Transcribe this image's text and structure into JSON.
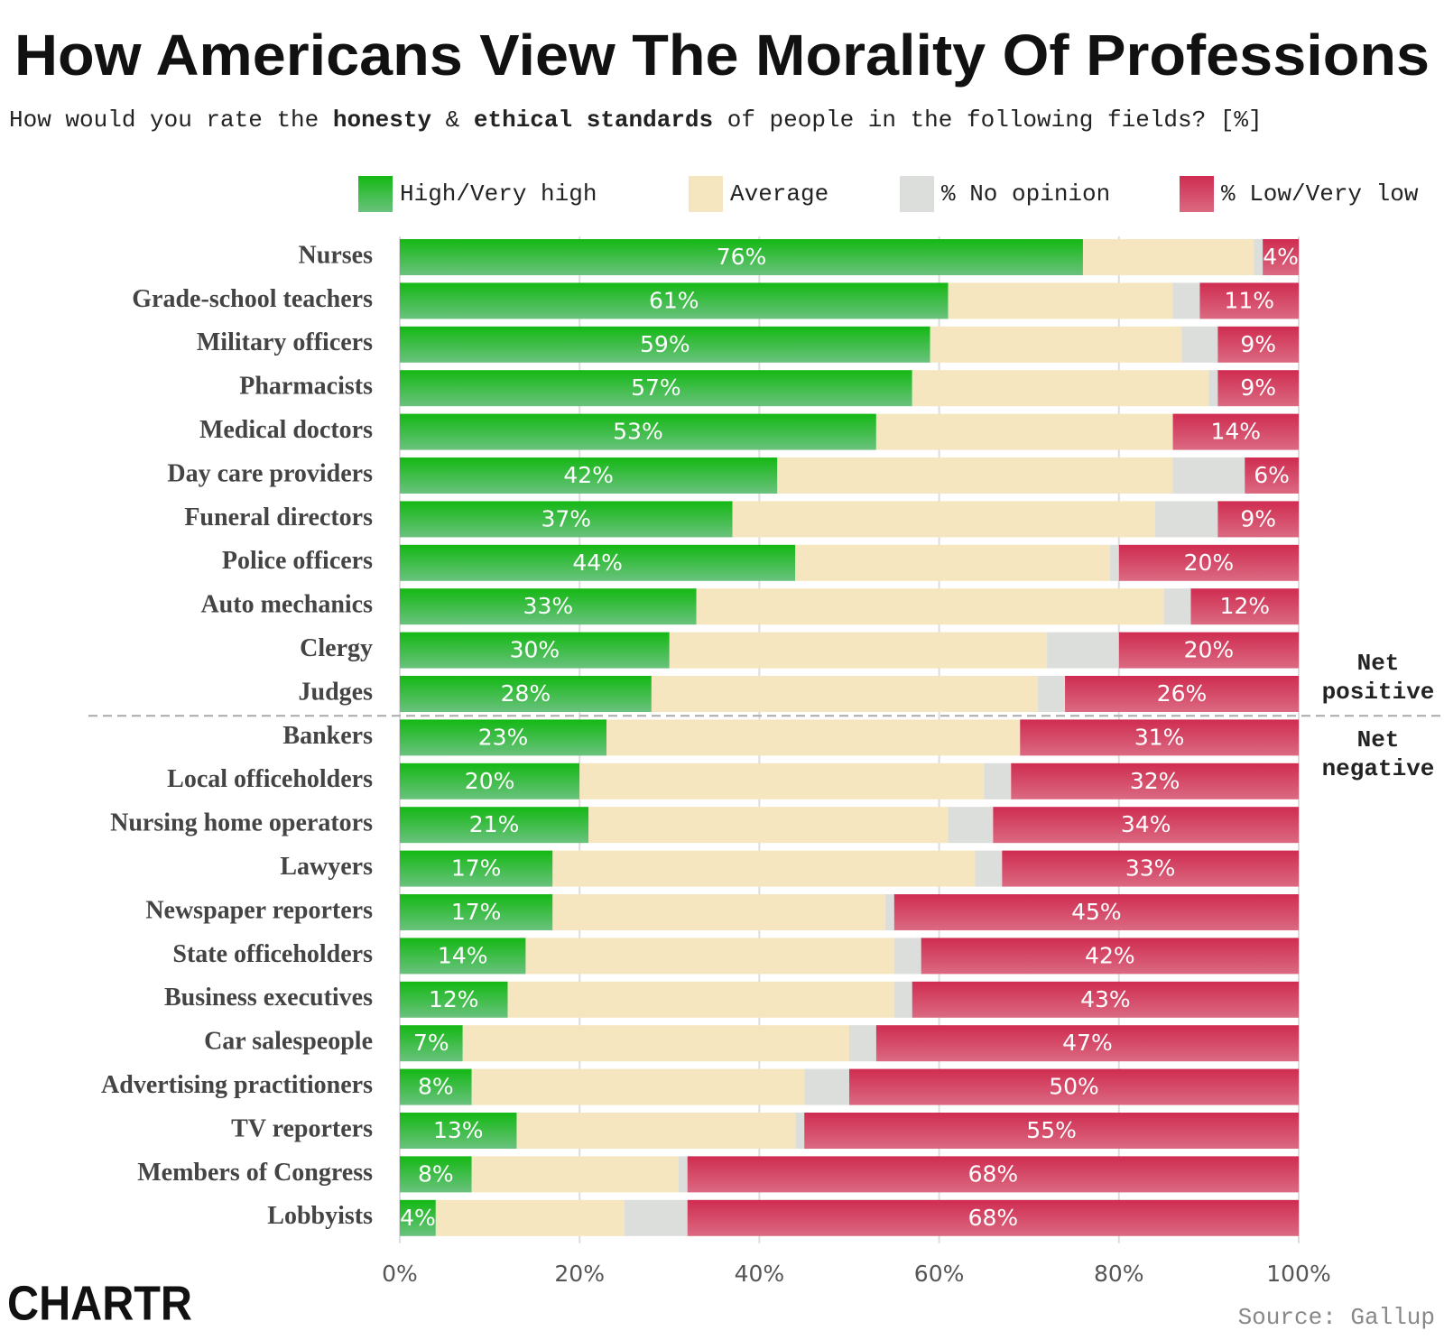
{
  "chart_data": {
    "type": "stacked_bar_horizontal",
    "title": "How Americans View The Morality Of Professions",
    "subtitle": [
      {
        "text": "How would you rate the ",
        "bold": false
      },
      {
        "text": "honesty",
        "bold": true
      },
      {
        "text": " & ",
        "bold": false
      },
      {
        "text": "ethical standards",
        "bold": true
      },
      {
        "text": " of people in the following fields? [%]",
        "bold": false
      }
    ],
    "categories": [
      "Nurses",
      "Grade-school teachers",
      "Military officers",
      "Pharmacists",
      "Medical doctors",
      "Day care providers",
      "Funeral directors",
      "Police officers",
      "Auto mechanics",
      "Clergy",
      "Judges",
      "Bankers",
      "Local officeholders",
      "Nursing home operators",
      "Lawyers",
      "Newspaper reporters",
      "State officeholders",
      "Business executives",
      "Car salespeople",
      "Advertising practitioners",
      "TV reporters",
      "Members of Congress",
      "Lobbyists"
    ],
    "series": [
      {
        "name": "High/Very high",
        "color": "#19b719",
        "values": [
          76,
          61,
          59,
          57,
          53,
          42,
          37,
          44,
          33,
          30,
          28,
          23,
          20,
          21,
          17,
          17,
          14,
          12,
          7,
          8,
          13,
          8,
          4
        ],
        "value_labels": [
          "76%",
          "61%",
          "59%",
          "57%",
          "53%",
          "42%",
          "37%",
          "44%",
          "33%",
          "30%",
          "28%",
          "23%",
          "20%",
          "21%",
          "17%",
          "17%",
          "14%",
          "12%",
          "7%",
          "8%",
          "13%",
          "8%",
          "4%"
        ]
      },
      {
        "name": "Average",
        "color": "#f5e6bf",
        "values": [
          19,
          25,
          28,
          33,
          33,
          44,
          47,
          35,
          52,
          42,
          43,
          46,
          45,
          40,
          47,
          37,
          41,
          43,
          43,
          37,
          31,
          23,
          21
        ]
      },
      {
        "name": "% No opinion",
        "color": "#dcdedb",
        "values": [
          1,
          3,
          4,
          1,
          0,
          8,
          7,
          1,
          3,
          8,
          3,
          0,
          3,
          5,
          3,
          1,
          3,
          2,
          3,
          5,
          1,
          1,
          7
        ]
      },
      {
        "name": "% Low/Very low",
        "color": "#d0385a",
        "values": [
          4,
          11,
          9,
          9,
          14,
          6,
          9,
          20,
          12,
          20,
          26,
          31,
          32,
          34,
          33,
          45,
          42,
          43,
          47,
          50,
          55,
          68,
          68
        ],
        "value_labels": [
          "4%",
          "11%",
          "9%",
          "9%",
          "14%",
          "6%",
          "9%",
          "20%",
          "12%",
          "20%",
          "26%",
          "31%",
          "32%",
          "34%",
          "33%",
          "45%",
          "42%",
          "43%",
          "47%",
          "50%",
          "55%",
          "68%",
          "68%"
        ]
      }
    ],
    "xlim": [
      0,
      100
    ],
    "xticks": [
      {
        "value": 0,
        "label": "0%"
      },
      {
        "value": 20,
        "label": "20%"
      },
      {
        "value": 40,
        "label": "40%"
      },
      {
        "value": 60,
        "label": "60%"
      },
      {
        "value": 80,
        "label": "80%"
      },
      {
        "value": 100,
        "label": "100%"
      }
    ],
    "grid": true,
    "net_positive_label": [
      "Net",
      "positive"
    ],
    "net_negative_label": [
      "Net",
      "negative"
    ],
    "source": "Source: Gallup",
    "logo": "CHARTR"
  }
}
